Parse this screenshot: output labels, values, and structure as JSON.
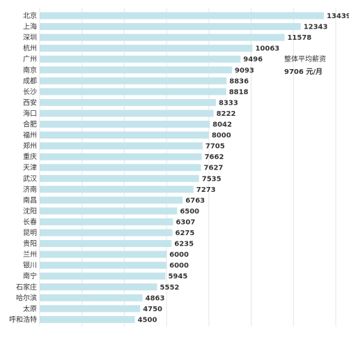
{
  "chart_data": {
    "type": "bar",
    "orientation": "horizontal",
    "categories": [
      "北京",
      "上海",
      "深圳",
      "杭州",
      "广州",
      "南京",
      "成都",
      "长沙",
      "西安",
      "海口",
      "合肥",
      "福州",
      "郑州",
      "重庆",
      "天津",
      "武汉",
      "济南",
      "南昌",
      "沈阳",
      "长春",
      "昆明",
      "贵阳",
      "兰州",
      "银川",
      "南宁",
      "石家庄",
      "哈尔滨",
      "太原",
      "呼和浩特"
    ],
    "values": [
      13439,
      12343,
      11578,
      10063,
      9496,
      9093,
      8836,
      8818,
      8333,
      8222,
      8042,
      8000,
      7705,
      7662,
      7627,
      7535,
      7273,
      6763,
      6500,
      6307,
      6275,
      6235,
      6000,
      6000,
      5945,
      5552,
      4863,
      4750,
      4500
    ],
    "xlim": [
      0,
      14000
    ],
    "grid": true,
    "legend": "none",
    "colors": {
      "bar": "#c4e4ec",
      "grid": "#e4e4e4",
      "text": "#333333"
    },
    "annotation": {
      "label": "整体平均薪资",
      "value": "9706 元/月"
    }
  }
}
